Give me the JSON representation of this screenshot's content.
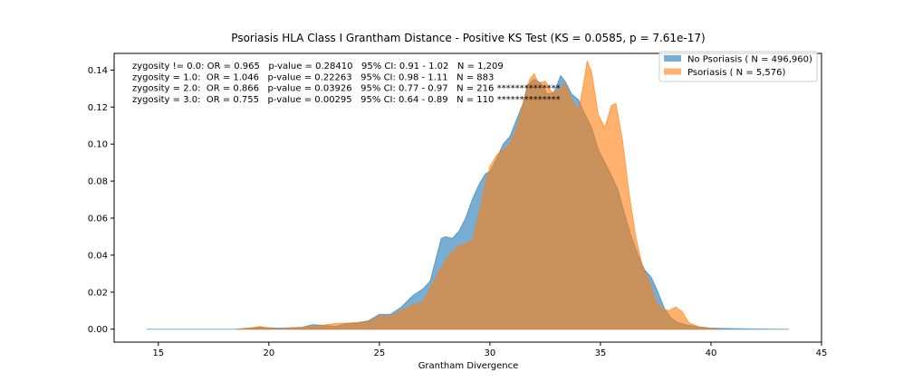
{
  "chart_data": {
    "type": "area",
    "title": "Psoriasis HLA Class I Grantham Distance - Positive KS Test (KS = 0.0585, p = 7.61e-17)",
    "xlabel": "Grantham Divergence",
    "ylabel": "",
    "xlim": [
      13.0,
      45.0
    ],
    "ylim": [
      -0.007,
      0.149
    ],
    "xticks": [
      15,
      20,
      25,
      30,
      35,
      40,
      45
    ],
    "yticks": [
      0.0,
      0.02,
      0.04,
      0.06,
      0.08,
      0.1,
      0.12,
      0.14
    ],
    "ytick_labels": [
      "0.00",
      "0.02",
      "0.04",
      "0.06",
      "0.08",
      "0.10",
      "0.12",
      "0.14"
    ],
    "legend_position": "top-right",
    "grid": false,
    "annotations": [
      "zygosity != 0.0: OR = 0.965   p-value = 0.28410   95% CI: 0.91 - 1.02   N = 1,209",
      "zygosity = 1.0:  OR = 1.046   p-value = 0.22263   95% CI: 0.98 - 1.11   N = 883",
      "zygosity = 2.0:  OR = 0.866   p-value = 0.03926   95% CI: 0.77 - 0.97   N = 216 **************",
      "zygosity = 3.0:  OR = 0.755   p-value = 0.00295   95% CI: 0.64 - 0.89   N = 110 **************"
    ],
    "series": [
      {
        "name": "No Psoriasis ( N = 496,960)",
        "color": "#1f77b4",
        "opacity": 0.6,
        "x": [
          14.5,
          18.5,
          19.5,
          20.5,
          21.5,
          22.0,
          22.5,
          23.0,
          23.5,
          24.0,
          24.5,
          25.0,
          25.5,
          26.0,
          26.5,
          27.0,
          27.3,
          27.6,
          27.8,
          28.0,
          28.3,
          28.6,
          28.9,
          29.2,
          29.5,
          29.8,
          30.0,
          30.3,
          30.6,
          30.9,
          31.2,
          31.5,
          31.7,
          32.0,
          32.3,
          32.6,
          32.9,
          33.2,
          33.4,
          33.7,
          34.0,
          34.3,
          34.6,
          34.9,
          35.2,
          35.5,
          35.8,
          36.1,
          36.4,
          36.7,
          37.0,
          37.3,
          37.6,
          37.9,
          38.2,
          38.5,
          39.0,
          39.5,
          40.0,
          41.0,
          42.0,
          43.5
        ],
        "y": [
          0.0,
          0.0,
          0.001,
          0.0005,
          0.001,
          0.0025,
          0.002,
          0.0015,
          0.003,
          0.0035,
          0.0045,
          0.008,
          0.008,
          0.012,
          0.018,
          0.022,
          0.026,
          0.04,
          0.049,
          0.05,
          0.049,
          0.053,
          0.06,
          0.07,
          0.078,
          0.084,
          0.085,
          0.092,
          0.1,
          0.104,
          0.113,
          0.122,
          0.132,
          0.135,
          0.133,
          0.127,
          0.128,
          0.137,
          0.134,
          0.127,
          0.124,
          0.116,
          0.109,
          0.097,
          0.09,
          0.083,
          0.075,
          0.062,
          0.05,
          0.04,
          0.032,
          0.028,
          0.02,
          0.011,
          0.006,
          0.0035,
          0.002,
          0.0012,
          0.0006,
          0.0003,
          0.0001,
          0.0
        ]
      },
      {
        "name": "Psoriasis ( N = 5,576)",
        "color": "#ff7f0e",
        "opacity": 0.6,
        "x": [
          18.5,
          19.2,
          19.6,
          20.0,
          20.5,
          21.0,
          22.0,
          23.0,
          24.0,
          24.5,
          25.0,
          25.5,
          26.0,
          26.5,
          27.0,
          27.5,
          28.0,
          28.3,
          28.6,
          28.9,
          29.2,
          29.5,
          29.8,
          30.0,
          30.3,
          30.6,
          30.9,
          31.2,
          31.5,
          31.8,
          32.0,
          32.2,
          32.5,
          32.8,
          33.1,
          33.4,
          33.7,
          34.0,
          34.2,
          34.4,
          34.6,
          34.9,
          35.2,
          35.5,
          35.7,
          36.0,
          36.3,
          36.6,
          36.9,
          37.2,
          37.5,
          37.8,
          38.1,
          38.4,
          38.7,
          39.0,
          39.5,
          40.0,
          40.5
        ],
        "y": [
          0.0,
          0.0005,
          0.0015,
          0.0005,
          0.0,
          0.0005,
          0.0015,
          0.003,
          0.0035,
          0.004,
          0.007,
          0.007,
          0.01,
          0.013,
          0.015,
          0.027,
          0.037,
          0.042,
          0.045,
          0.046,
          0.048,
          0.062,
          0.079,
          0.088,
          0.094,
          0.097,
          0.1,
          0.108,
          0.122,
          0.135,
          0.138,
          0.133,
          0.134,
          0.128,
          0.129,
          0.133,
          0.124,
          0.118,
          0.13,
          0.145,
          0.139,
          0.116,
          0.109,
          0.121,
          0.122,
          0.102,
          0.073,
          0.05,
          0.034,
          0.026,
          0.015,
          0.011,
          0.01,
          0.012,
          0.0095,
          0.0035,
          0.001,
          0.0003,
          0.0
        ]
      }
    ]
  }
}
